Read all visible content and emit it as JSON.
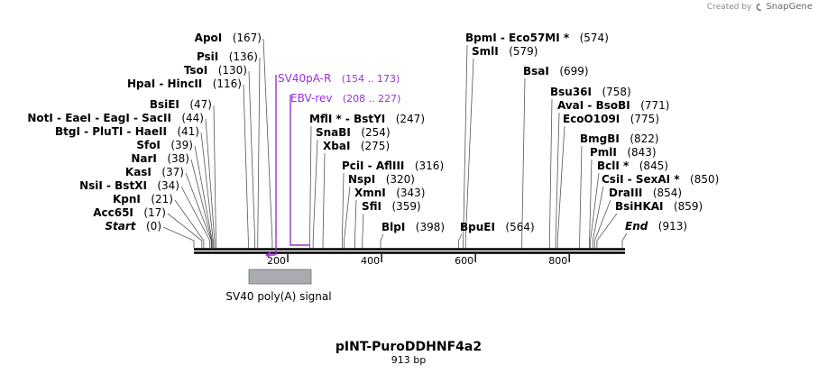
{
  "credit": {
    "prefix": "Created by",
    "brand": "SnapGene",
    "icon": "snapgene-logo-icon"
  },
  "map": {
    "title": "pINT-PuroDDHNF4a2",
    "length_label": "913 bp",
    "total_bp": 913,
    "scale_ticks": [
      "200",
      "400",
      "600",
      "800"
    ],
    "scale_tick_values": [
      200,
      400,
      600,
      800
    ]
  },
  "features": [
    {
      "name": "SV40 poly(A) signal",
      "start": 120,
      "end": 253,
      "color": "#a8abb0"
    }
  ],
  "primers": [
    {
      "name": "SV40pA-R",
      "range": "(154 .. 173)",
      "start": 154,
      "end": 173,
      "color": "#9b30d9"
    },
    {
      "name": "EBV-rev",
      "range": "(208 .. 227)",
      "start": 208,
      "end": 227,
      "color": "#9b30d9"
    }
  ],
  "left_sites": [
    {
      "pos": "(167)",
      "name": "ApoI",
      "bp": 167
    },
    {
      "pos": "(136)",
      "name": "PsiI",
      "bp": 136
    },
    {
      "pos": "(130)",
      "name": "TsoI",
      "bp": 130
    },
    {
      "pos": "(116)",
      "name": "HpaI  -  HincII",
      "bp": 116
    },
    {
      "pos": "(47)",
      "name": "BsiEI",
      "bp": 47
    },
    {
      "pos": "(44)",
      "name": "NotI  -  EaeI  -  EagI  -  SacII",
      "bp": 44
    },
    {
      "pos": "(41)",
      "name": "BtgI  -  PluTI  -  HaeII",
      "bp": 41
    },
    {
      "pos": "(39)",
      "name": "SfoI",
      "bp": 39
    },
    {
      "pos": "(38)",
      "name": "NarI",
      "bp": 38
    },
    {
      "pos": "(37)",
      "name": "KasI",
      "bp": 37
    },
    {
      "pos": "(34)",
      "name": "NsiI  -  BstXI",
      "bp": 34
    },
    {
      "pos": "(21)",
      "name": "KpnI",
      "bp": 21
    },
    {
      "pos": "(17)",
      "name": "Acc65I",
      "bp": 17
    },
    {
      "pos": "(0)",
      "name": "Start",
      "bp": 0,
      "italic": true
    }
  ],
  "right_sites": [
    {
      "name": "BpmI  -  Eco57MI *",
      "pos": "(574)",
      "bp": 574
    },
    {
      "name": "SmlI",
      "pos": "(579)",
      "bp": 579
    },
    {
      "name": "BsaI",
      "pos": "(699)",
      "bp": 699
    },
    {
      "name": "Bsu36I",
      "pos": "(758)",
      "bp": 758
    },
    {
      "name": "AvaI  -  BsoBI",
      "pos": "(771)",
      "bp": 771
    },
    {
      "name": "EcoO109I",
      "pos": "(775)",
      "bp": 775
    },
    {
      "name": "BmgBI",
      "pos": "(822)",
      "bp": 822
    },
    {
      "name": "PmlI",
      "pos": "(843)",
      "bp": 843
    },
    {
      "name": "BclI *",
      "pos": "(845)",
      "bp": 845
    },
    {
      "name": "CsiI  -  SexAI *",
      "pos": "(850)",
      "bp": 850
    },
    {
      "name": "DraIII",
      "pos": "(854)",
      "bp": 854
    },
    {
      "name": "BsiHKAI",
      "pos": "(859)",
      "bp": 859
    },
    {
      "name": "End",
      "pos": "(913)",
      "bp": 913,
      "italic": true
    }
  ],
  "middle_sites": [
    {
      "name": "MflI *  -  BstYI",
      "pos": "(247)",
      "bp": 247
    },
    {
      "name": "SnaBI",
      "pos": "(254)",
      "bp": 254
    },
    {
      "name": "XbaI",
      "pos": "(275)",
      "bp": 275
    },
    {
      "name": "PciI  -  AflIII",
      "pos": "(316)",
      "bp": 316
    },
    {
      "name": "NspI",
      "pos": "(320)",
      "bp": 320
    },
    {
      "name": "XmnI",
      "pos": "(343)",
      "bp": 343
    },
    {
      "name": "SfiI",
      "pos": "(359)",
      "bp": 359
    },
    {
      "name": "BlpI",
      "pos": "(398)",
      "bp": 398
    },
    {
      "name": "BpuEI",
      "pos": "(564)",
      "bp": 564
    }
  ]
}
